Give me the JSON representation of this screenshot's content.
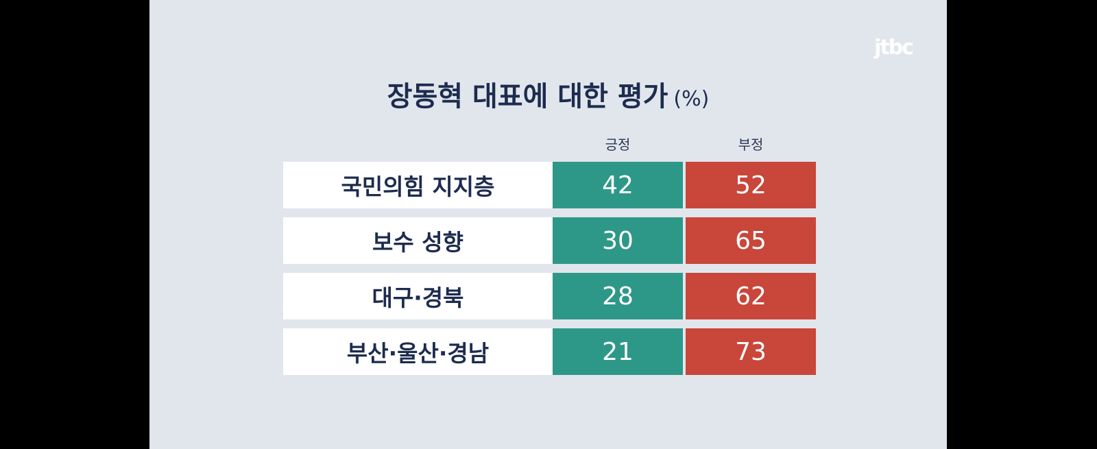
{
  "logo": "jtbc",
  "title": "장동혁 대표에 대한 평가",
  "unit": "(%)",
  "colors": {
    "positive": "#2e9888",
    "negative": "#c9463a",
    "background": "#e1e6ed"
  },
  "chart_data": {
    "type": "table",
    "title": "장동혁 대표에 대한 평가",
    "unit": "(%)",
    "columns": [
      "긍정",
      "부정"
    ],
    "rows": [
      {
        "label": "국민의힘 지지층",
        "values": [
          42,
          52
        ]
      },
      {
        "label": "보수 성향",
        "values": [
          30,
          65
        ]
      },
      {
        "label": "대구·경북",
        "values": [
          28,
          62
        ]
      },
      {
        "label": "부산·울산·경남",
        "values": [
          21,
          73
        ]
      }
    ]
  }
}
